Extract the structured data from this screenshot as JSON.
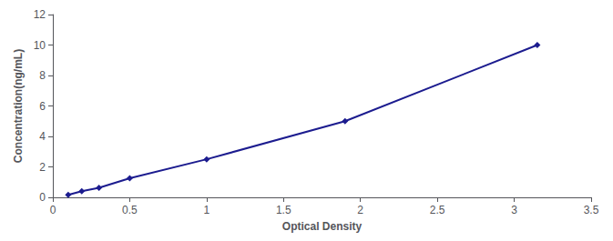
{
  "chart_data": {
    "type": "line",
    "x": [
      0.1,
      0.188,
      0.3,
      0.5,
      1.0,
      1.9,
      3.15
    ],
    "values": [
      0.16,
      0.4,
      0.625,
      1.25,
      2.5,
      5.0,
      10.0
    ],
    "color": "#1c1c8f",
    "marker": "diamond",
    "xlabel": "Optical Density",
    "ylabel": "Concentration(ng/mL)",
    "xlim": [
      0,
      3.5
    ],
    "ylim": [
      0,
      12
    ],
    "xticks": [
      0,
      0.5,
      1,
      1.5,
      2,
      2.5,
      3,
      3.5
    ],
    "yticks": [
      0,
      2,
      4,
      6,
      8,
      10,
      12
    ],
    "grid": false
  }
}
